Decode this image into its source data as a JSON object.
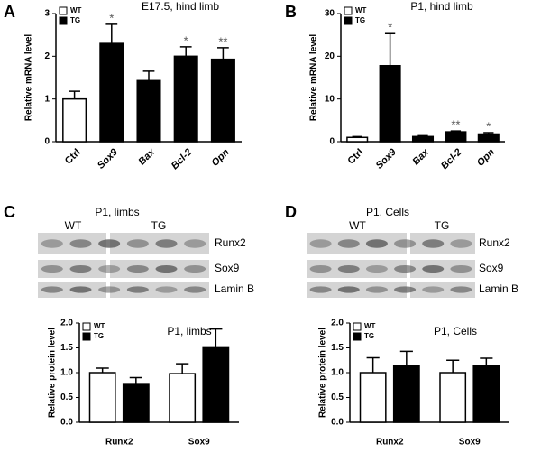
{
  "panel_labels": [
    "A",
    "B",
    "C",
    "D"
  ],
  "blots": [
    {
      "title": "P1, limbs",
      "groups": [
        "WT",
        "TG"
      ],
      "rows": [
        "Runx2",
        "Sox9",
        "Lamin B"
      ]
    },
    {
      "title": "P1, Cells",
      "groups": [
        "WT",
        "TG"
      ],
      "rows": [
        "Runx2",
        "Sox9",
        "Lamin B"
      ]
    }
  ],
  "chart_data": [
    {
      "type": "bar",
      "title": "E17.5, hind limb",
      "y_label": "Relative mRNA level",
      "categories": [
        "Ctrl",
        "Sox9",
        "Bax",
        "Bcl-2",
        "Opn"
      ],
      "values": [
        1.0,
        2.3,
        1.43,
        2.0,
        1.93
      ],
      "errors": [
        0.18,
        0.45,
        0.22,
        0.22,
        0.27
      ],
      "colors": [
        "#ffffff",
        "#000000",
        "#000000",
        "#000000",
        "#000000"
      ],
      "stars": [
        null,
        "*",
        null,
        "*",
        "**"
      ],
      "legend": [
        {
          "name": "WT",
          "color": "#ffffff"
        },
        {
          "name": "TG",
          "color": "#000000"
        }
      ],
      "ylim": [
        0,
        3
      ],
      "yticks": [
        0,
        1,
        2,
        3
      ]
    },
    {
      "type": "bar",
      "title": "P1, hind limb",
      "y_label": "Relative mRNA level",
      "categories": [
        "Ctrl",
        "Sox9",
        "Bax",
        "Bcl-2",
        "Opn"
      ],
      "values": [
        1.0,
        17.8,
        1.2,
        2.3,
        1.8
      ],
      "errors": [
        0.2,
        7.5,
        0.2,
        0.2,
        0.3
      ],
      "colors": [
        "#ffffff",
        "#000000",
        "#000000",
        "#000000",
        "#000000"
      ],
      "stars": [
        null,
        "*",
        null,
        "**",
        "*"
      ],
      "legend": [
        {
          "name": "WT",
          "color": "#ffffff"
        },
        {
          "name": "TG",
          "color": "#000000"
        }
      ],
      "ylim": [
        0,
        30
      ],
      "yticks": [
        0,
        10,
        20,
        30
      ]
    },
    {
      "type": "grouped_bar",
      "title": "P1, limbs",
      "y_label": "Relative protein level",
      "categories": [
        "Runx2",
        "Sox9"
      ],
      "series": [
        {
          "name": "WT",
          "color": "#ffffff",
          "values": [
            1.0,
            0.98
          ],
          "errors": [
            0.09,
            0.2
          ]
        },
        {
          "name": "TG",
          "color": "#000000",
          "values": [
            0.78,
            1.52
          ],
          "errors": [
            0.12,
            0.36
          ]
        }
      ],
      "ylim": [
        0,
        2
      ],
      "yticks": [
        {
          "value": 0,
          "label": "0.0"
        },
        {
          "value": 0.5,
          "label": "0.5"
        },
        {
          "value": 1,
          "label": "1.0"
        },
        {
          "value": 1.5,
          "label": "1.5"
        },
        {
          "value": 2,
          "label": "2.0"
        }
      ]
    },
    {
      "type": "grouped_bar",
      "title": "P1, Cells",
      "y_label": "Relative protein level",
      "categories": [
        "Runx2",
        "Sox9"
      ],
      "series": [
        {
          "name": "WT",
          "color": "#ffffff",
          "values": [
            1.0,
            1.0
          ],
          "errors": [
            0.3,
            0.25
          ]
        },
        {
          "name": "TG",
          "color": "#000000",
          "values": [
            1.15,
            1.15
          ],
          "errors": [
            0.28,
            0.14
          ]
        }
      ],
      "ylim": [
        0,
        2
      ],
      "yticks": [
        {
          "value": 0,
          "label": "0.0"
        },
        {
          "value": 0.5,
          "label": "0.5"
        },
        {
          "value": 1,
          "label": "1.0"
        },
        {
          "value": 1.5,
          "label": "1.5"
        },
        {
          "value": 2,
          "label": "2.0"
        }
      ]
    }
  ]
}
